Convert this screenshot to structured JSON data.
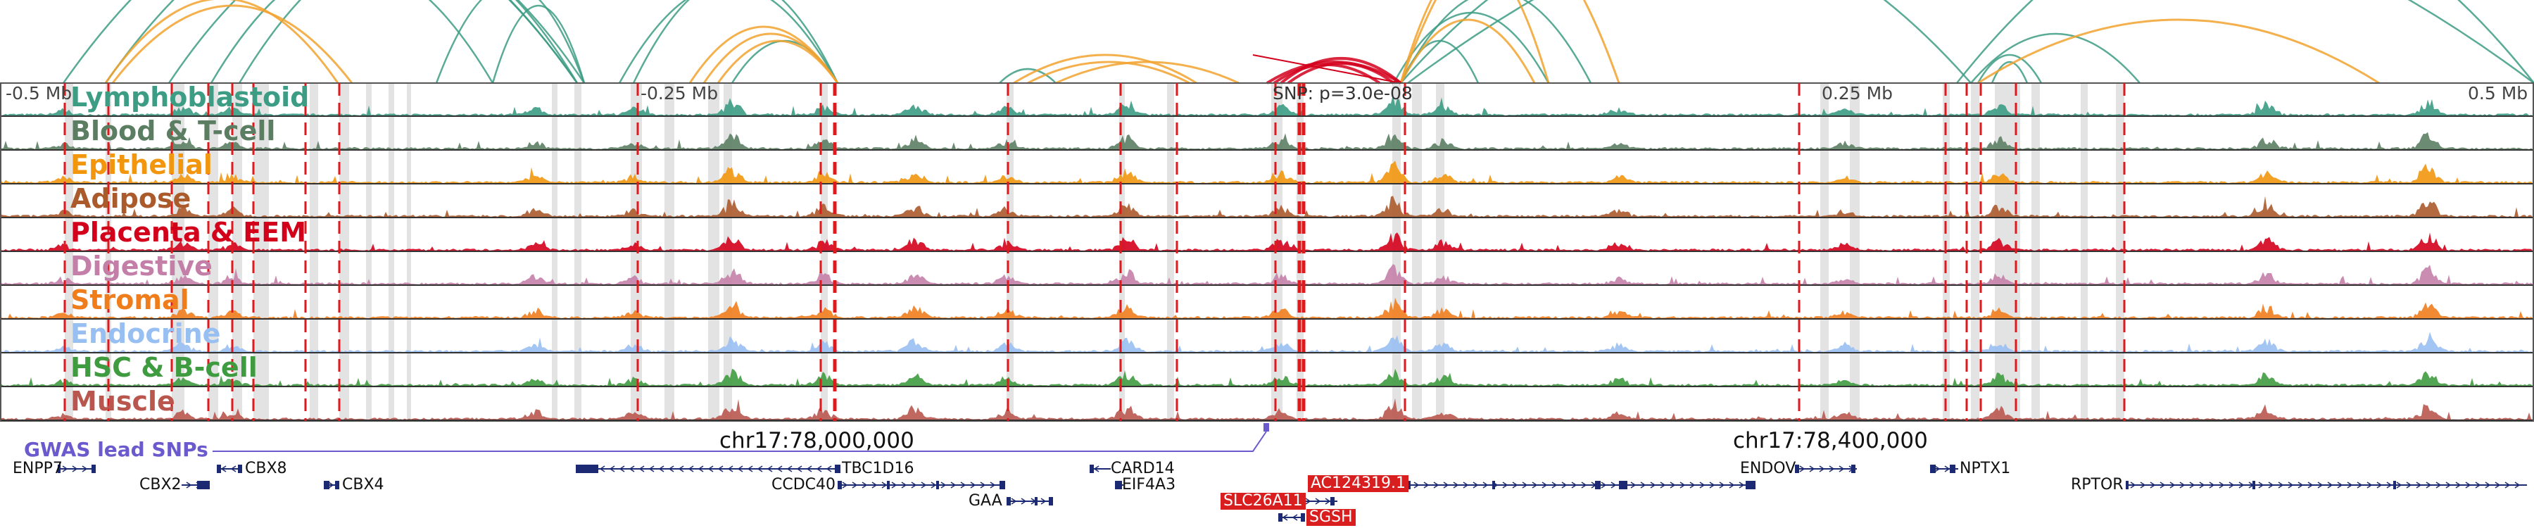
{
  "scale": {
    "left_label": "-0.5 Mb",
    "mid_left_label": "-0.25 Mb",
    "mid_right_label": "0.25 Mb",
    "right_label": "0.5 Mb"
  },
  "snp_label": "SNP: p=3.0e-08",
  "coordinates": {
    "left": "chr17:78,000,000",
    "right": "chr17:78,400,000"
  },
  "gwas_label": "GWAS lead SNPs",
  "tracks": [
    {
      "name": "Lymphoblastoid",
      "color": "#3c9c84"
    },
    {
      "name": "Blood & T-cell",
      "color": "#5b7e63"
    },
    {
      "name": "Epithelial",
      "color": "#f2960e"
    },
    {
      "name": "Adipose",
      "color": "#ab5a2c"
    },
    {
      "name": "Placenta & EEM",
      "color": "#d3001c"
    },
    {
      "name": "Digestive",
      "color": "#c47fa8"
    },
    {
      "name": "Stromal",
      "color": "#f07d1c"
    },
    {
      "name": "Endocrine",
      "color": "#98bff2"
    },
    {
      "name": "HSC & B-cell",
      "color": "#3f9b3f"
    },
    {
      "name": "Muscle",
      "color": "#b9574f"
    }
  ],
  "genes": [
    {
      "name": "ENPP7",
      "highlight": false
    },
    {
      "name": "CBX8",
      "highlight": false
    },
    {
      "name": "CBX2",
      "highlight": false
    },
    {
      "name": "CBX4",
      "highlight": false
    },
    {
      "name": "TBC1D16",
      "highlight": false
    },
    {
      "name": "CCDC40",
      "highlight": false
    },
    {
      "name": "GAA",
      "highlight": false
    },
    {
      "name": "CARD14",
      "highlight": false
    },
    {
      "name": "EIF4A3",
      "highlight": false
    },
    {
      "name": "AC124319.1",
      "highlight": true
    },
    {
      "name": "SLC26A11",
      "highlight": true
    },
    {
      "name": "SGSH",
      "highlight": true
    },
    {
      "name": "ENDOV",
      "highlight": false
    },
    {
      "name": "NPTX1",
      "highlight": false
    },
    {
      "name": "RPTOR",
      "highlight": false
    }
  ],
  "colors": {
    "arc_green": "#3c9c84",
    "arc_orange": "#f2a22e",
    "arc_red": "#d3001c",
    "gwas": "#6a5acd",
    "gene_body": "#1c2a73",
    "highlight_gene": "#d81e1e",
    "dashed_line": "#e0191c",
    "shade": "#d9d9d9"
  }
}
